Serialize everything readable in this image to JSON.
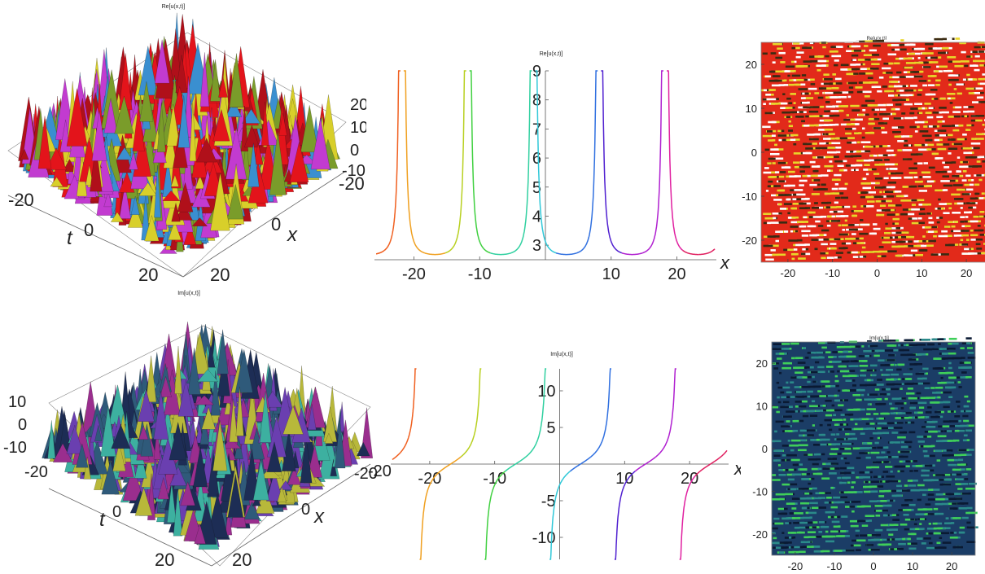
{
  "panels": {
    "re3d": {
      "title": "Re[u(x,t)]",
      "x_ticks": [
        "-20",
        "0",
        "20"
      ],
      "t_ticks": [
        "-20",
        "0",
        "20"
      ],
      "z_ticks": [
        "20",
        "10",
        "0",
        "-10"
      ],
      "xlabel": "x",
      "tlabel": "t",
      "colors": [
        "#e3141b",
        "#b0101a",
        "#7a9c2a",
        "#3a8fd0",
        "#c23bd0",
        "#d8cf2a"
      ]
    },
    "im3d": {
      "title": "Im[u(x,t)]",
      "x_ticks": [
        "-20",
        "0",
        "20"
      ],
      "t_ticks": [
        "-20",
        "0",
        "20"
      ],
      "z_ticks": [
        "10",
        "0",
        "-10"
      ],
      "xlabel": "x",
      "tlabel": "t",
      "colors": [
        "#1d2d55",
        "#2f5a7a",
        "#9a2e8e",
        "#3db0a0",
        "#b8b83a",
        "#6a3fb0"
      ]
    },
    "re_density": {
      "title": "Re[u(x,t)]",
      "x_ticks": [
        "-20",
        "-10",
        "0",
        "10",
        "20"
      ],
      "y_ticks": [
        "20",
        "10",
        "0",
        "-10",
        "-20"
      ],
      "colors": [
        "#e22a1a",
        "#3a2a12",
        "#e8d52a",
        "#ffffff"
      ]
    },
    "im_density": {
      "title": "Im[u(x,t)]",
      "x_ticks": [
        "-20",
        "-10",
        "0",
        "10",
        "20"
      ],
      "y_ticks": [
        "20",
        "10",
        "0",
        "-10",
        "-20"
      ],
      "colors": [
        "#1b3d66",
        "#2b8a8a",
        "#3fcf5a",
        "#0a1a33"
      ]
    }
  },
  "chart_data": [
    {
      "type": "line",
      "title": "Re[u(x,t)]",
      "xlabel": "x",
      "ylabel": "",
      "xlim": [
        -26,
        26
      ],
      "ylim": [
        2.5,
        9
      ],
      "x_ticks": [
        -20,
        -10,
        10,
        20
      ],
      "x_tick_labels": [
        "-20",
        "-10",
        "10",
        "20"
      ],
      "y_ticks": [
        3,
        4,
        5,
        6,
        7,
        8,
        9
      ],
      "y_tick_labels": [
        "3",
        "4",
        "5",
        "6",
        "7",
        "8",
        "9"
      ],
      "pattern": "periodic poles with period 10, minimum 2.5",
      "poles": [
        -21.8,
        -11.8,
        -1.8,
        8.2,
        18.2
      ],
      "colors": [
        "#f06020",
        "#f0a020",
        "#b8d020",
        "#40d040",
        "#30d0a0",
        "#30c8d8",
        "#3070e0",
        "#5020d0",
        "#b020d0",
        "#e020a0",
        "#e02060"
      ]
    },
    {
      "type": "line",
      "title": "Im[u(x,t)]",
      "xlabel": "x",
      "ylabel": "",
      "xlim": [
        -26,
        26
      ],
      "ylim": [
        -13,
        13
      ],
      "x_ticks": [
        -20,
        -10,
        10,
        20
      ],
      "x_tick_labels": [
        "-20",
        "-10",
        "10",
        "20"
      ],
      "y_ticks": [
        -10,
        -5,
        5,
        10
      ],
      "y_tick_labels": [
        "-10",
        "-5",
        "5",
        "10"
      ],
      "y_tick_extra_label": "-20",
      "pattern": "periodic tangent-like branches with period 10, amplitude 13",
      "poles": [
        -21.8,
        -11.8,
        -1.8,
        8.2,
        18.2
      ],
      "colors": [
        "#f06020",
        "#f0a020",
        "#b8d020",
        "#40d040",
        "#30d0a0",
        "#30c8d8",
        "#3070e0",
        "#5020d0",
        "#b020d0",
        "#e020a0",
        "#e02060"
      ]
    }
  ]
}
